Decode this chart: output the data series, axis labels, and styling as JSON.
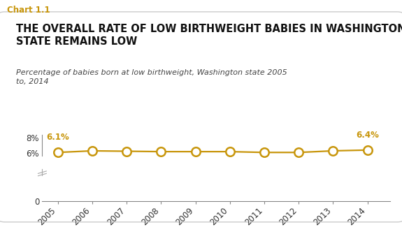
{
  "chart_label": "Chart 1.1",
  "chart_label_color": "#C8960C",
  "title_line1": "THE OVERALL RATE OF LOW BIRTHWEIGHT BABIES IN WASHINGTON",
  "title_line2": "STATE REMAINS LOW",
  "subtitle_line1": "Percentage of babies born at low birthweight, Washington state 2005",
  "subtitle_line2": "to, 2014",
  "years": [
    2005,
    2006,
    2007,
    2008,
    2009,
    2010,
    2011,
    2012,
    2013,
    2014
  ],
  "values": [
    6.1,
    6.3,
    6.25,
    6.2,
    6.2,
    6.2,
    6.1,
    6.1,
    6.3,
    6.4
  ],
  "line_color": "#C8960C",
  "marker_facecolor": "#FFFFFF",
  "marker_edgecolor": "#C8960C",
  "annotation_first": "6.1%",
  "annotation_last": "6.4%",
  "annotation_color": "#C8960C",
  "ylim": [
    0,
    9
  ],
  "bg_color": "#FFFFFF",
  "box_edgecolor": "#CCCCCC",
  "title_fontsize": 10.5,
  "subtitle_fontsize": 8.0,
  "axis_fontsize": 8.5,
  "label_fontsize": 8.5
}
